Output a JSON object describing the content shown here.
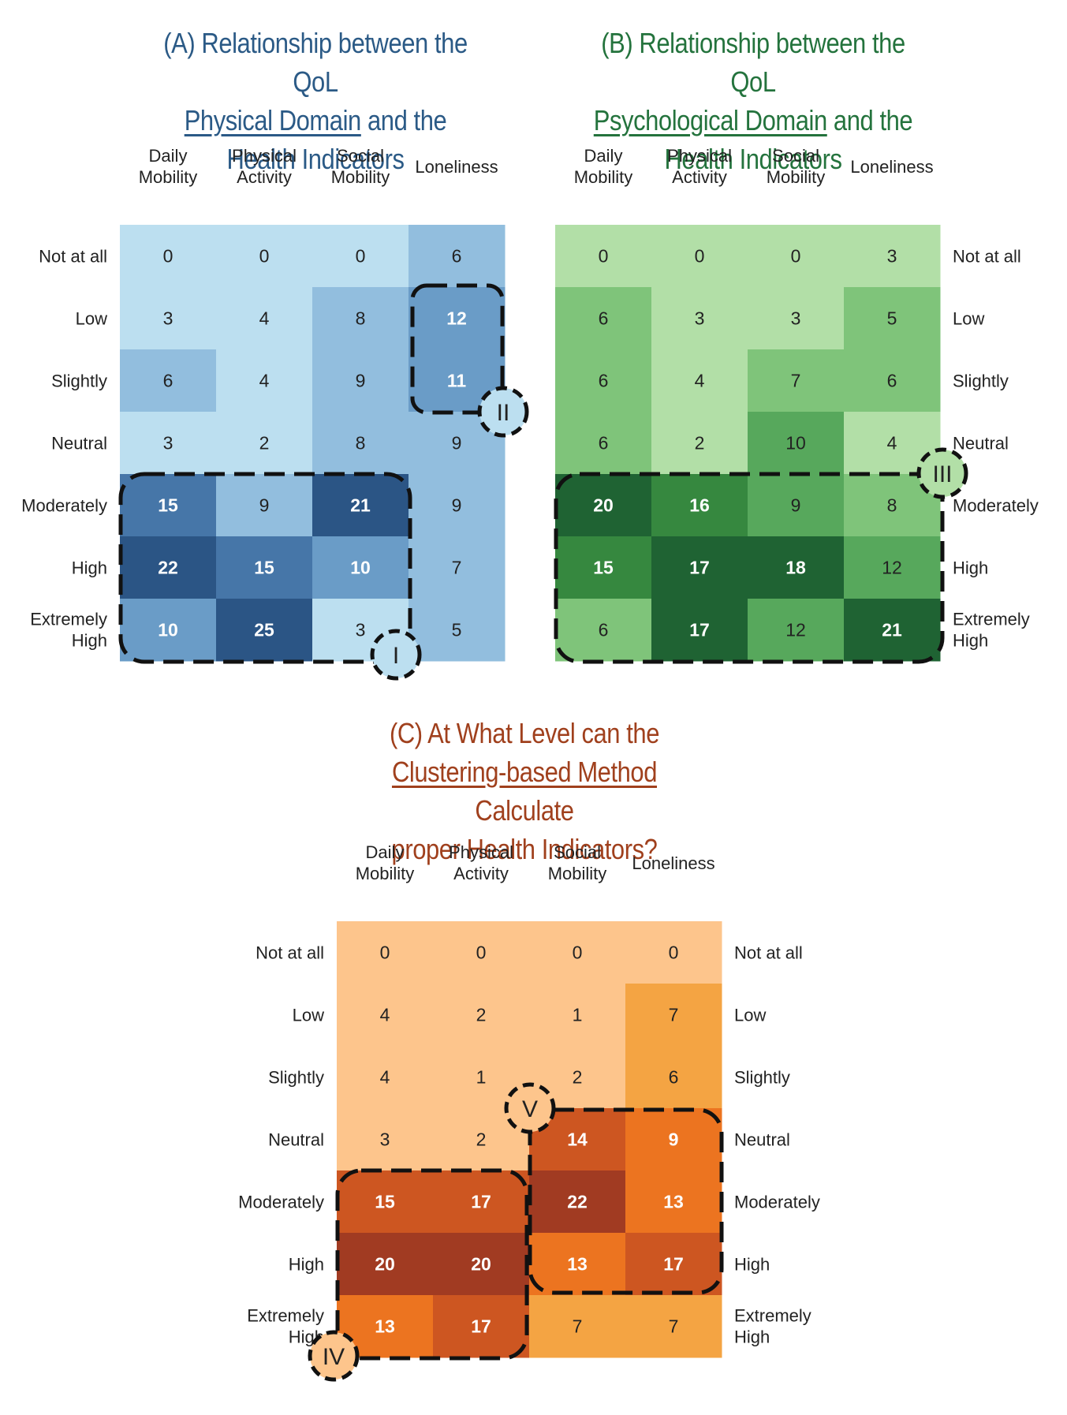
{
  "titles": {
    "a": {
      "pre": "(A) Relationship between the QoL",
      "underlined": "Physical Domain",
      "post": " and the",
      "line3": "Health Indicators"
    },
    "b": {
      "pre": "(B) Relationship between the QoL",
      "underlined": "Psychological Domain",
      "post": " and the",
      "line3": "Health Indicators"
    },
    "c": {
      "pre": "(C) At What Level can the",
      "underlined": "Clustering-based Method",
      "post": " Calculate",
      "line3": "proper Health Indicators?"
    }
  },
  "colors": {
    "blue": [
      "#bcdff0",
      "#92bede",
      "#6a9cc7",
      "#4676a8",
      "#2b5585"
    ],
    "green": [
      "#b2dfa7",
      "#7fc47a",
      "#57a85c",
      "#36883f",
      "#1f6333"
    ],
    "orange": [
      "#fdc58c",
      "#f4a443",
      "#ec7420",
      "#cd5621",
      "#a13b22"
    ],
    "title_a": "#2b5a86",
    "title_b": "#24733d",
    "title_c": "#a0401d"
  },
  "chart_data": [
    {
      "id": "A",
      "type": "heatmap",
      "title": "(A) Relationship between the QoL Physical Domain and the Health Indicators",
      "columns": [
        "Daily Mobility",
        "Physical Activity",
        "Social Mobility",
        "Loneliness"
      ],
      "rows": [
        "Not at all",
        "Low",
        "Slightly",
        "Neutral",
        "Moderately",
        "High",
        "Extremely High"
      ],
      "values": [
        [
          0,
          0,
          0,
          6
        ],
        [
          3,
          4,
          8,
          12
        ],
        [
          6,
          4,
          9,
          11
        ],
        [
          3,
          2,
          8,
          9
        ],
        [
          15,
          9,
          21,
          9
        ],
        [
          22,
          15,
          10,
          7
        ],
        [
          10,
          25,
          3,
          5
        ]
      ],
      "levels": [
        [
          0,
          0,
          0,
          1
        ],
        [
          0,
          0,
          1,
          2
        ],
        [
          1,
          0,
          1,
          2
        ],
        [
          0,
          0,
          1,
          1
        ],
        [
          3,
          1,
          4,
          1
        ],
        [
          4,
          3,
          2,
          1
        ],
        [
          2,
          4,
          0,
          1
        ]
      ],
      "palette": "blue",
      "annotations": [
        "I",
        "II"
      ]
    },
    {
      "id": "B",
      "type": "heatmap",
      "title": "(B) Relationship between the QoL Psychological Domain and the Health Indicators",
      "columns": [
        "Daily Mobility",
        "Physical Activity",
        "Social Mobility",
        "Loneliness"
      ],
      "rows": [
        "Not at all",
        "Low",
        "Slightly",
        "Neutral",
        "Moderately",
        "High",
        "Extremely High"
      ],
      "values": [
        [
          0,
          0,
          0,
          3
        ],
        [
          6,
          3,
          3,
          5
        ],
        [
          6,
          4,
          7,
          6
        ],
        [
          6,
          2,
          10,
          4
        ],
        [
          20,
          16,
          9,
          8
        ],
        [
          15,
          17,
          18,
          12
        ],
        [
          6,
          17,
          12,
          21
        ]
      ],
      "levels": [
        [
          0,
          0,
          0,
          0
        ],
        [
          1,
          0,
          0,
          1
        ],
        [
          1,
          0,
          1,
          1
        ],
        [
          1,
          0,
          2,
          0
        ],
        [
          4,
          3,
          2,
          1
        ],
        [
          3,
          4,
          4,
          2
        ],
        [
          1,
          4,
          2,
          4
        ]
      ],
      "palette": "green",
      "annotations": [
        "III"
      ]
    },
    {
      "id": "C",
      "type": "heatmap",
      "title": "(C) At What Level can the Clustering-based Method Calculate proper Health Indicators?",
      "columns": [
        "Daily Mobility",
        "Physical Activity",
        "Social Mobility",
        "Loneliness"
      ],
      "rows": [
        "Not at all",
        "Low",
        "Slightly",
        "Neutral",
        "Moderately",
        "High",
        "Extremely High"
      ],
      "values": [
        [
          0,
          0,
          0,
          0
        ],
        [
          4,
          2,
          1,
          7
        ],
        [
          4,
          1,
          2,
          6
        ],
        [
          3,
          2,
          14,
          9
        ],
        [
          15,
          17,
          22,
          13
        ],
        [
          20,
          20,
          13,
          17
        ],
        [
          13,
          17,
          7,
          7
        ]
      ],
      "levels": [
        [
          0,
          0,
          0,
          0
        ],
        [
          0,
          0,
          0,
          1
        ],
        [
          0,
          0,
          0,
          1
        ],
        [
          0,
          0,
          3,
          2
        ],
        [
          3,
          3,
          4,
          2
        ],
        [
          4,
          4,
          2,
          3
        ],
        [
          2,
          3,
          1,
          1
        ]
      ],
      "palette": "orange",
      "annotations": [
        "IV",
        "V"
      ]
    }
  ]
}
